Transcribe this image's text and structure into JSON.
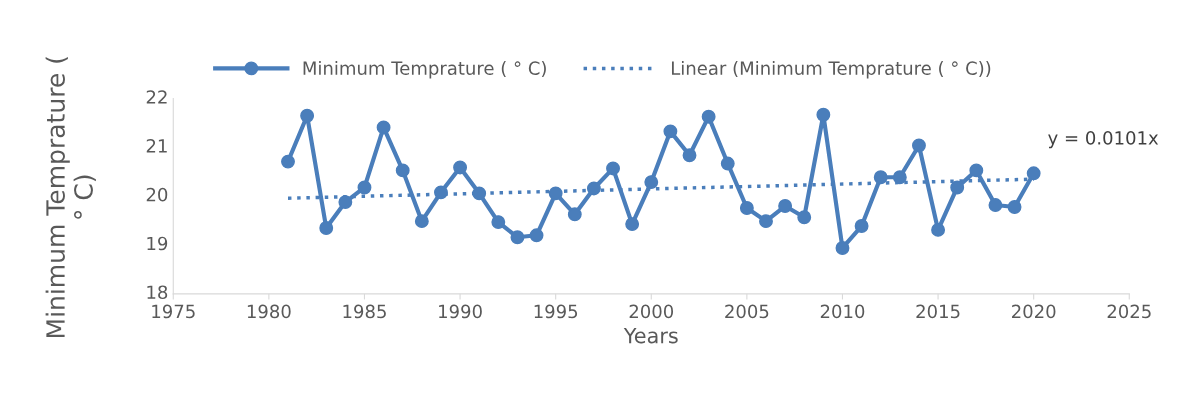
{
  "chart_data": {
    "type": "line",
    "xlabel": "Years",
    "ylabel": "Minimum Temprature ( ° C)",
    "x": [
      1981,
      1982,
      1983,
      1984,
      1985,
      1986,
      1987,
      1988,
      1989,
      1990,
      1991,
      1992,
      1993,
      1994,
      1995,
      1996,
      1997,
      1998,
      1999,
      2000,
      2001,
      2002,
      2003,
      2004,
      2005,
      2006,
      2007,
      2008,
      2009,
      2010,
      2011,
      2012,
      2013,
      2014,
      2015,
      2016,
      2017,
      2018,
      2019,
      2020
    ],
    "series": [
      {
        "name": "Minimum Temprature ( ° C)",
        "color": "#4a7ebb",
        "line_style": "solid",
        "values": [
          20.71,
          21.65,
          19.35,
          19.88,
          20.18,
          21.41,
          20.53,
          19.49,
          20.08,
          20.59,
          20.06,
          19.47,
          19.16,
          19.2,
          20.06,
          19.63,
          20.16,
          20.57,
          19.43,
          20.29,
          21.33,
          20.84,
          21.63,
          20.67,
          19.76,
          19.49,
          19.8,
          19.57,
          21.67,
          18.94,
          19.39,
          20.39,
          20.39,
          21.04,
          19.31,
          20.18,
          20.53,
          19.82,
          19.78,
          20.47
        ]
      },
      {
        "name": "Linear (Minimum Temprature ( ° C))",
        "type": "line",
        "color": "#4a7ebb",
        "marker": "none",
        "line_style": "dotted",
        "x": [
          1981,
          2020
        ],
        "values": [
          19.96,
          20.35
        ]
      }
    ],
    "annotations": [
      {
        "text": "y = 0.0101x",
        "x": 2020,
        "y": 20.35
      }
    ],
    "xlim": [
      1975,
      2025
    ],
    "xticks": [
      1975,
      1980,
      1985,
      1990,
      1995,
      2000,
      2005,
      2010,
      2015,
      2020,
      2025
    ],
    "ylim": [
      18,
      22
    ],
    "yticks": [
      18,
      19,
      20,
      21,
      22
    ],
    "grid": false,
    "legend": "top",
    "marker": "circle"
  }
}
